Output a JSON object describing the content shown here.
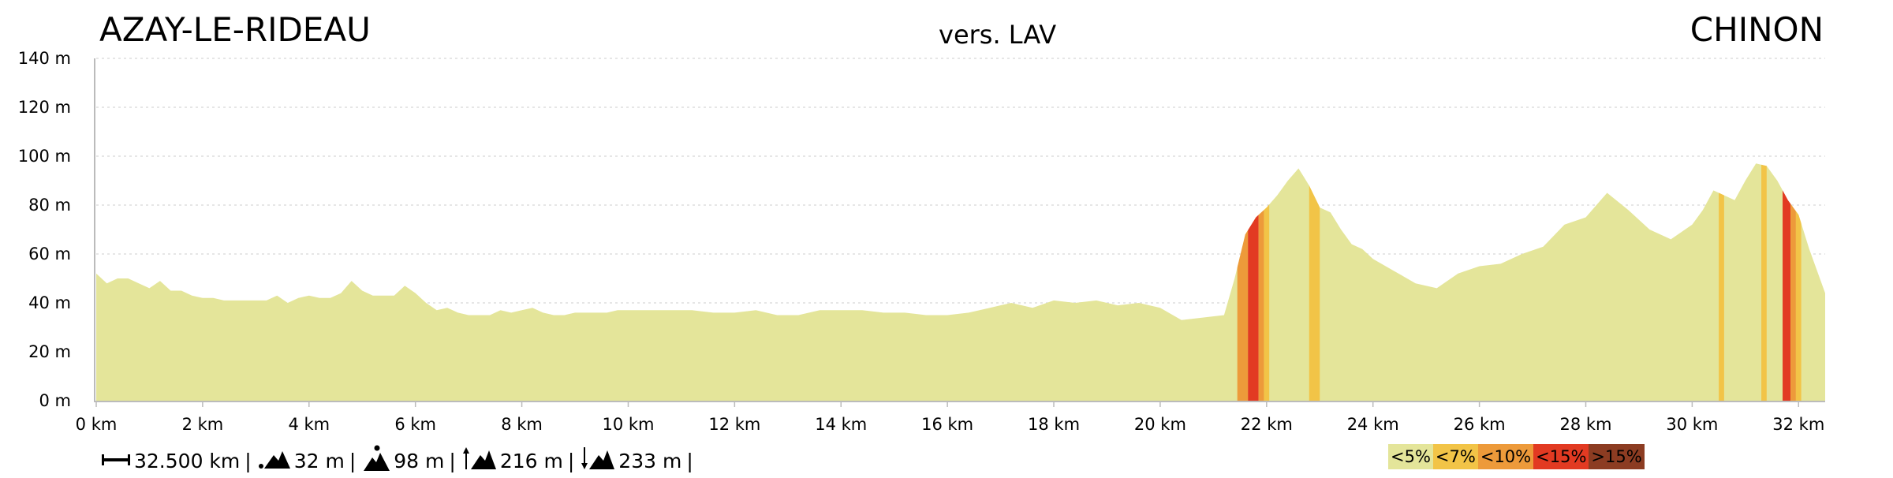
{
  "header": {
    "start": "AZAY-LE-RIDEAU",
    "middle": "vers. LAV",
    "end": "CHINON"
  },
  "chart_data": {
    "type": "area",
    "xlabel": "",
    "ylabel": "",
    "xlim": [
      0,
      32.5
    ],
    "ylim": [
      0,
      140
    ],
    "x_ticks": [
      "0 km",
      "2 km",
      "4 km",
      "6 km",
      "8 km",
      "10 km",
      "12 km",
      "14 km",
      "16 km",
      "18 km",
      "20 km",
      "22 km",
      "24 km",
      "26 km",
      "28 km",
      "30 km",
      "32 km"
    ],
    "y_ticks": [
      "0 m",
      "20 m",
      "40 m",
      "60 m",
      "80 m",
      "100 m",
      "120 m",
      "140 m"
    ],
    "grid": "horizontal-dotted",
    "colors": {
      "lt5": "#e4e59a",
      "lt7": "#f2c447",
      "lt10": "#ed9a3a",
      "lt15": "#e23a22",
      "gt15": "#8c3c22"
    },
    "elevation_km": [
      0,
      0.2,
      0.4,
      0.6,
      0.8,
      1.0,
      1.2,
      1.4,
      1.6,
      1.8,
      2.0,
      2.2,
      2.4,
      2.6,
      2.8,
      3.0,
      3.2,
      3.4,
      3.6,
      3.8,
      4.0,
      4.2,
      4.4,
      4.6,
      4.8,
      5.0,
      5.2,
      5.4,
      5.6,
      5.8,
      6.0,
      6.2,
      6.4,
      6.6,
      6.8,
      7.0,
      7.2,
      7.4,
      7.6,
      7.8,
      8.0,
      8.2,
      8.4,
      8.6,
      8.8,
      9.0,
      9.2,
      9.4,
      9.6,
      9.8,
      10.0,
      10.4,
      10.8,
      11.2,
      11.6,
      12.0,
      12.4,
      12.8,
      13.2,
      13.6,
      14.0,
      14.4,
      14.8,
      15.2,
      15.6,
      16.0,
      16.4,
      16.8,
      17.2,
      17.6,
      18.0,
      18.4,
      18.8,
      19.2,
      19.6,
      20.0,
      20.4,
      20.8,
      21.2,
      21.4,
      21.6,
      21.8,
      22.0,
      22.2,
      22.4,
      22.6,
      22.8,
      23.0,
      23.2,
      23.4,
      23.6,
      23.8,
      24.0,
      24.4,
      24.8,
      25.2,
      25.6,
      26.0,
      26.4,
      26.8,
      27.2,
      27.6,
      28.0,
      28.4,
      28.8,
      29.2,
      29.6,
      30.0,
      30.2,
      30.4,
      30.6,
      30.8,
      31.0,
      31.2,
      31.4,
      31.6,
      31.8,
      32.0,
      32.2,
      32.5
    ],
    "elevation_m": [
      52,
      48,
      50,
      50,
      48,
      46,
      49,
      45,
      45,
      43,
      42,
      42,
      41,
      41,
      41,
      41,
      41,
      43,
      40,
      42,
      43,
      42,
      42,
      44,
      49,
      45,
      43,
      43,
      43,
      47,
      44,
      40,
      37,
      38,
      36,
      35,
      35,
      35,
      37,
      36,
      37,
      38,
      36,
      35,
      35,
      36,
      36,
      36,
      36,
      37,
      37,
      37,
      37,
      37,
      36,
      36,
      37,
      35,
      35,
      37,
      37,
      37,
      36,
      36,
      35,
      35,
      36,
      38,
      40,
      38,
      41,
      40,
      41,
      39,
      40,
      38,
      33,
      34,
      35,
      50,
      68,
      75,
      79,
      84,
      90,
      95,
      88,
      79,
      77,
      70,
      64,
      62,
      58,
      53,
      48,
      46,
      52,
      55,
      56,
      60,
      63,
      72,
      75,
      85,
      78,
      70,
      66,
      72,
      78,
      86,
      84,
      82,
      90,
      97,
      96,
      90,
      82,
      76,
      62,
      44,
      38,
      35
    ],
    "grade_bands": [
      {
        "from": 21.45,
        "to": 21.65,
        "class": "lt10"
      },
      {
        "from": 21.65,
        "to": 21.85,
        "class": "lt15"
      },
      {
        "from": 21.85,
        "to": 21.95,
        "class": "lt10"
      },
      {
        "from": 21.95,
        "to": 22.05,
        "class": "lt7"
      },
      {
        "from": 22.8,
        "to": 23.0,
        "class": "lt7"
      },
      {
        "from": 30.5,
        "to": 30.6,
        "class": "lt7"
      },
      {
        "from": 31.3,
        "to": 31.4,
        "class": "lt7"
      },
      {
        "from": 31.7,
        "to": 31.85,
        "class": "lt15"
      },
      {
        "from": 31.85,
        "to": 31.95,
        "class": "lt10"
      },
      {
        "from": 31.95,
        "to": 32.05,
        "class": "lt7"
      }
    ]
  },
  "stats": {
    "distance": "32.500 km",
    "min_alt": "32 m",
    "max_alt": "98 m",
    "ascent": "216 m",
    "descent": "233 m",
    "separator": "|"
  },
  "legend": {
    "items": [
      {
        "label": "<5%",
        "color": "#e4e59a"
      },
      {
        "label": "<7%",
        "color": "#f2c447"
      },
      {
        "label": "<10%",
        "color": "#ed9a3a"
      },
      {
        "label": "<15%",
        "color": "#e23a22"
      },
      {
        "label": ">15%",
        "color": "#8c3c22"
      }
    ]
  }
}
